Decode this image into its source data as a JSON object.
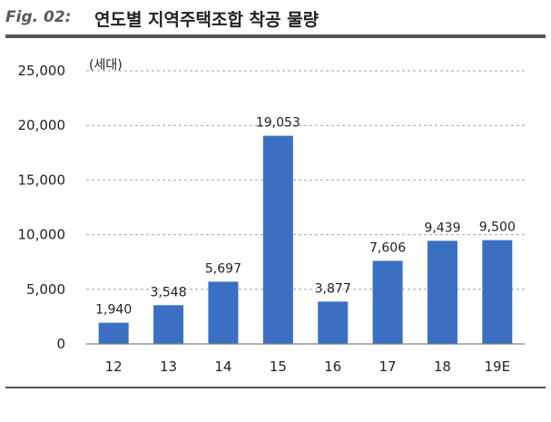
{
  "header": {
    "figure_label": "Fig. 02:",
    "title": "연도별 지역주택조합 착공 물량"
  },
  "colors": {
    "bar": "#3b6fc4",
    "gridline": "#a6a6a6",
    "axis": "#7f7f7f",
    "rule": "#555555"
  },
  "chart_data": {
    "type": "bar",
    "title": "연도별 지역주택조합 착공 물량",
    "unit_label": "(세대)",
    "xlabel": "",
    "ylabel": "",
    "categories": [
      "12",
      "13",
      "14",
      "15",
      "16",
      "17",
      "18",
      "19E"
    ],
    "values": [
      1940,
      3548,
      5697,
      19053,
      3877,
      7606,
      9439,
      9500
    ],
    "value_labels": [
      "1,940",
      "3,548",
      "5,697",
      "19,053",
      "3,877",
      "7,606",
      "9,439",
      "9,500"
    ],
    "ylim": [
      0,
      25000
    ],
    "yticks": [
      0,
      5000,
      10000,
      15000,
      20000,
      25000
    ],
    "ytick_labels": [
      "0",
      "5,000",
      "10,000",
      "15,000",
      "20,000",
      "25,000"
    ],
    "grid": true,
    "grid_style": "dashed",
    "legend": "none"
  }
}
